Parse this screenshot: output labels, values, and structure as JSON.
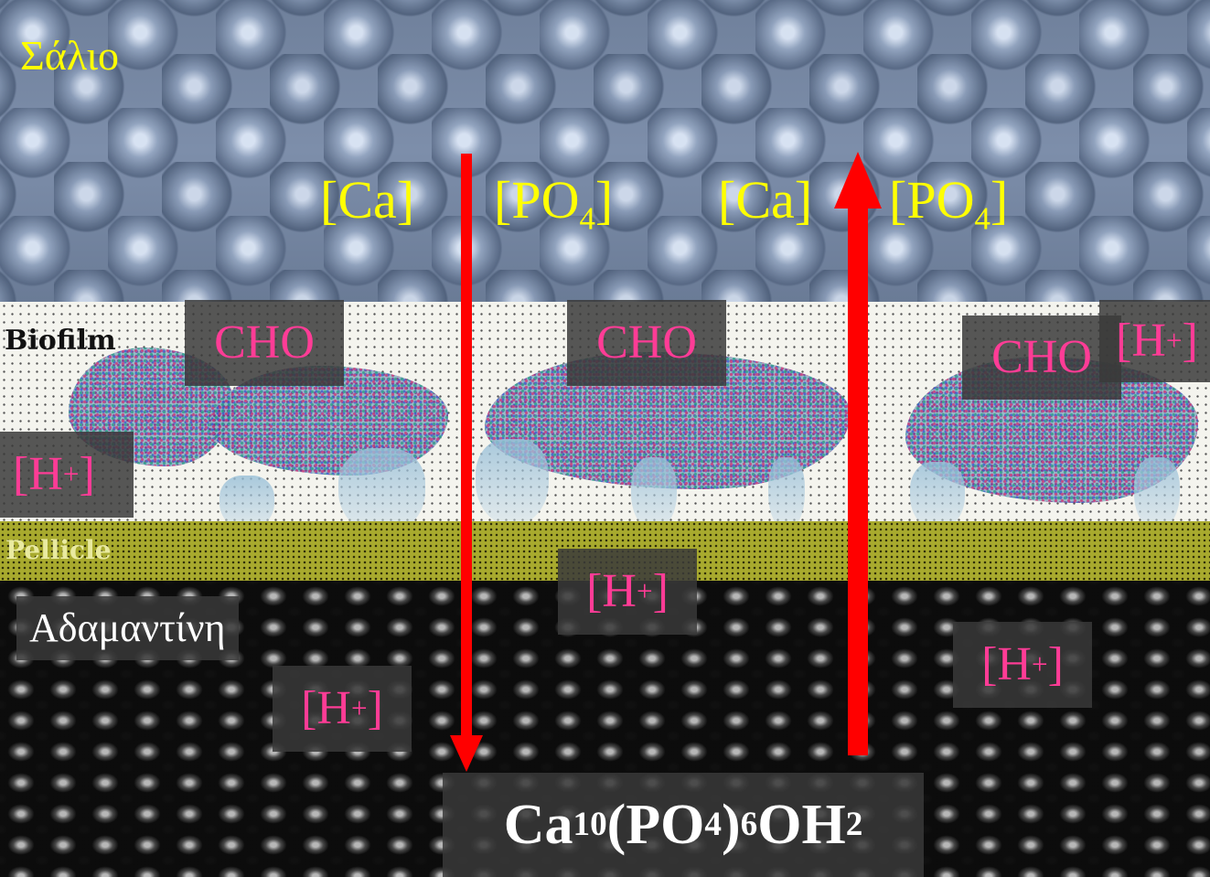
{
  "layers": {
    "saliva": "Σάλιο",
    "biofilm": "Biofilm",
    "pellicle": "Pellicle",
    "enamel": "Αδαμαντίνη"
  },
  "ions": {
    "ca_left": "[Ca]",
    "po4_left_base": "[PO",
    "po4_left_sub": "4",
    "po4_left_close": "]",
    "ca_right": "[Ca]",
    "po4_right_base": "[PO",
    "po4_right_sub": "4",
    "po4_right_close": "]"
  },
  "cho": {
    "a": "CHO",
    "b": "CHO",
    "c": "CHO"
  },
  "hplus": {
    "base": "[H",
    "sup": "+",
    "close": "]"
  },
  "formula": {
    "ca": "Ca",
    "ca_sub": "10",
    "po": "(PO",
    "po_sub": "4",
    "paren_close": ")",
    "paren_sub": "6",
    "oh": "OH",
    "oh_sub": "2"
  },
  "colors": {
    "ion_text": "#ffff00",
    "acid_text": "#ff3c96",
    "arrow": "#ff0000"
  },
  "arrows": [
    {
      "direction": "down",
      "meaning": "demineralization"
    },
    {
      "direction": "up",
      "meaning": "remineralization"
    }
  ]
}
